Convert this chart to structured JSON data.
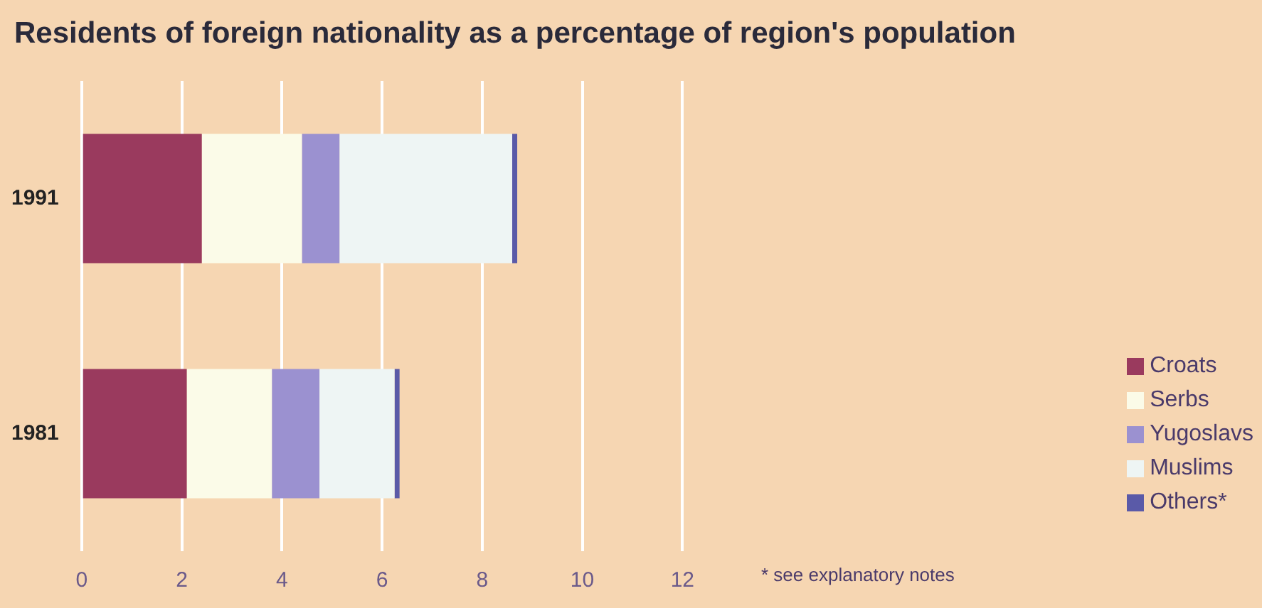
{
  "chart_data": {
    "type": "bar",
    "orientation": "horizontal",
    "stacked": true,
    "title": "Residents of foreign nationality as a percentage of region's population",
    "categories": [
      "1991",
      "1981"
    ],
    "series": [
      {
        "name": "Croats",
        "color": "#9a3a5e",
        "values": [
          2.4,
          2.1
        ]
      },
      {
        "name": "Serbs",
        "color": "#fbfbe8",
        "values": [
          2.0,
          1.7
        ]
      },
      {
        "name": "Yugoslavs",
        "color": "#9b91d0",
        "values": [
          0.75,
          0.95
        ]
      },
      {
        "name": "Muslims",
        "color": "#eef5f4",
        "values": [
          3.45,
          1.5
        ]
      },
      {
        "name": "Others*",
        "color": "#5a5aa8",
        "values": [
          0.1,
          0.1
        ]
      }
    ],
    "xlim": [
      0,
      12
    ],
    "xticks": [
      0,
      2,
      4,
      6,
      8,
      10,
      12
    ],
    "grid": "x",
    "legend": "bottom right",
    "annotations": [
      "* see explanatory notes"
    ]
  }
}
